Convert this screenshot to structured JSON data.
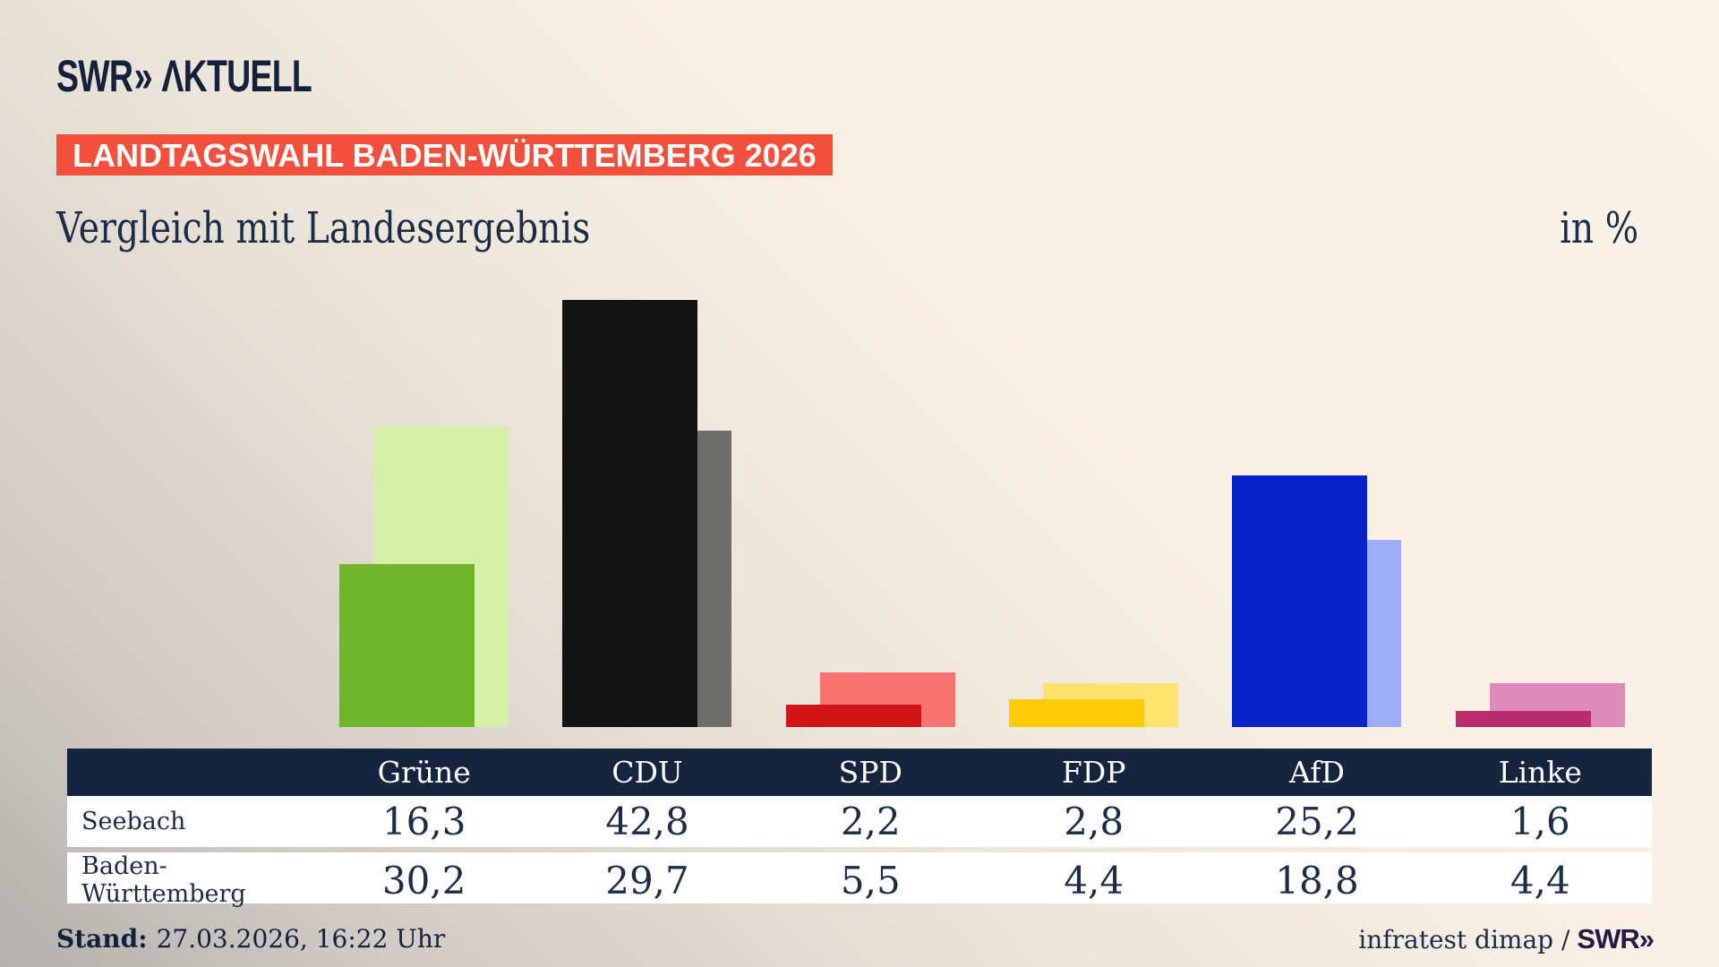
{
  "header": {
    "logo_brand": "SWR",
    "logo_chevrons": "»",
    "logo_suffix": "ΛKTUELL",
    "banner": "LANDTAGSWAHL BADEN-WÜRTTEMBERG 2026",
    "title": "Vergleich mit Landesergebnis",
    "unit_label": "in %"
  },
  "footer": {
    "stand_label": "Stand:",
    "stand_value": "27.03.2026, 16:22 Uhr",
    "source_text": "infratest dimap /",
    "source_brand": "SWR",
    "source_chevrons": "»"
  },
  "chart_data": {
    "type": "bar",
    "title": "Vergleich mit Landesergebnis",
    "unit": "%",
    "categories": [
      "Grüne",
      "CDU",
      "SPD",
      "FDP",
      "AfD",
      "Linke"
    ],
    "category_slugs": [
      "gruene",
      "cdu",
      "spd",
      "fdp",
      "afd",
      "linke"
    ],
    "series": [
      {
        "name": "Seebach",
        "values": [
          16.3,
          42.8,
          2.2,
          2.8,
          25.2,
          1.6
        ],
        "labels": [
          "16,3",
          "42,8",
          "2,2",
          "2,8",
          "25,2",
          "1,6"
        ],
        "colors": [
          "#6fb62b",
          "#141414",
          "#d11416",
          "#fccb05",
          "#0823c9",
          "#b92c6e"
        ]
      },
      {
        "name": "Baden-Württemberg",
        "values": [
          30.2,
          29.7,
          5.5,
          4.4,
          18.8,
          4.4
        ],
        "labels": [
          "30,2",
          "29,7",
          "5,5",
          "4,4",
          "18,8",
          "4,4"
        ],
        "colors": [
          "#d5f1a8",
          "#6e6e6d",
          "#f97470",
          "#fde26e",
          "#9eacf8",
          "#dd8cba"
        ]
      }
    ],
    "ylim": [
      0,
      43
    ],
    "grid": false,
    "axes_visible": false,
    "legend_position": "table-below",
    "style_colors": {
      "background_cream": "#f8f0e4",
      "background_gray": "#b9b7b4",
      "banner_red": "#f2503c",
      "navy": "#16253e",
      "text_navy": "#1b2c49"
    }
  }
}
